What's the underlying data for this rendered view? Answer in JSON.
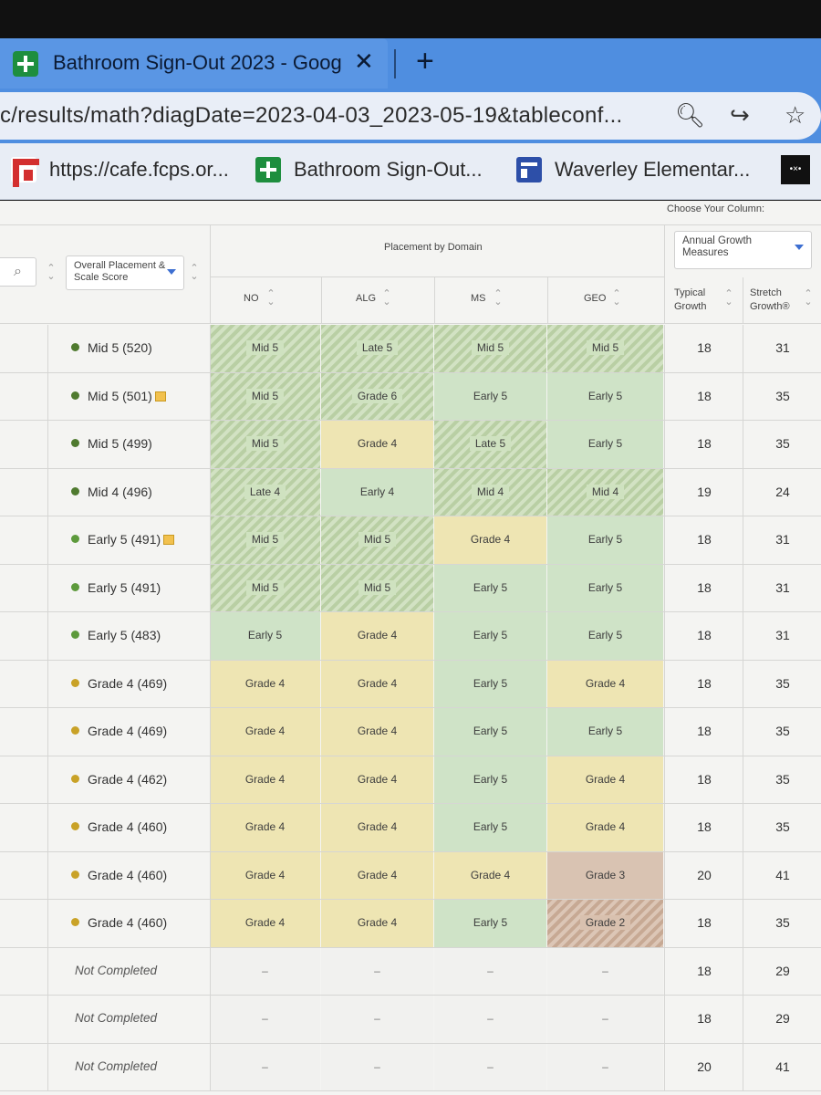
{
  "browser": {
    "tab_title": "Bathroom Sign-Out 2023 - Goog",
    "tab_close": "✕",
    "new_tab": "+",
    "url": "c/results/math?diagDate=2023-04-03_2023-05-19&tableconf...",
    "bookmarks": [
      {
        "label": "https://cafe.fcps.or...",
        "icon": "cafe-icon"
      },
      {
        "label": "Bathroom Sign-Out...",
        "icon": "sheets-icon"
      },
      {
        "label": "Waverley Elementar...",
        "icon": "school-icon"
      }
    ],
    "misc_icon_text": "•×•"
  },
  "table": {
    "choose_column_label": "Choose Your Column:",
    "growth_dropdown": "Annual Growth Measures",
    "overall_dropdown": "Overall Placement & Scale Score",
    "domain_header": "Placement by Domain",
    "domain_columns": [
      "NO",
      "ALG",
      "MS",
      "GEO"
    ],
    "typical_growth": "Typical Growth",
    "stretch_growth": "Stretch Growth®",
    "empty_mark": "–",
    "rows": [
      {
        "label": "Mid 5 (520)",
        "dot": "dark",
        "flag": false,
        "cells": [
          "Mid 5",
          "Late 5",
          "Mid 5",
          "Mid 5"
        ],
        "styles": [
          "gh",
          "gh",
          "gh",
          "gh"
        ],
        "typical": "18",
        "stretch": "31"
      },
      {
        "label": "Mid 5 (501)",
        "dot": "dark",
        "flag": true,
        "cells": [
          "Mid 5",
          "Grade 6",
          "Early 5",
          "Early 5"
        ],
        "styles": [
          "gh",
          "gh",
          "g",
          "g"
        ],
        "typical": "18",
        "stretch": "35"
      },
      {
        "label": "Mid 5 (499)",
        "dot": "dark",
        "flag": false,
        "cells": [
          "Mid 5",
          "Grade 4",
          "Late 5",
          "Early 5"
        ],
        "styles": [
          "gh",
          "y",
          "gh",
          "g"
        ],
        "typical": "18",
        "stretch": "35"
      },
      {
        "label": "Mid 4 (496)",
        "dot": "dark",
        "flag": false,
        "cells": [
          "Late 4",
          "Early 4",
          "Mid 4",
          "Mid 4"
        ],
        "styles": [
          "gh",
          "g",
          "gh",
          "gh"
        ],
        "typical": "19",
        "stretch": "24"
      },
      {
        "label": "Early 5 (491)",
        "dot": "green",
        "flag": true,
        "cells": [
          "Mid 5",
          "Mid 5",
          "Grade 4",
          "Early 5"
        ],
        "styles": [
          "gh",
          "gh",
          "y",
          "g"
        ],
        "typical": "18",
        "stretch": "31"
      },
      {
        "label": "Early 5 (491)",
        "dot": "green",
        "flag": false,
        "cells": [
          "Mid 5",
          "Mid 5",
          "Early 5",
          "Early 5"
        ],
        "styles": [
          "gh",
          "gh",
          "g",
          "g"
        ],
        "typical": "18",
        "stretch": "31"
      },
      {
        "label": "Early 5 (483)",
        "dot": "green",
        "flag": false,
        "cells": [
          "Early 5",
          "Grade 4",
          "Early 5",
          "Early 5"
        ],
        "styles": [
          "g",
          "y",
          "g",
          "g"
        ],
        "typical": "18",
        "stretch": "31"
      },
      {
        "label": "Grade 4 (469)",
        "dot": "yellow",
        "flag": false,
        "cells": [
          "Grade 4",
          "Grade 4",
          "Early 5",
          "Grade 4"
        ],
        "styles": [
          "y",
          "y",
          "g",
          "y"
        ],
        "typical": "18",
        "stretch": "35"
      },
      {
        "label": "Grade 4 (469)",
        "dot": "yellow",
        "flag": false,
        "cells": [
          "Grade 4",
          "Grade 4",
          "Early 5",
          "Early 5"
        ],
        "styles": [
          "y",
          "y",
          "g",
          "g"
        ],
        "typical": "18",
        "stretch": "35"
      },
      {
        "label": "Grade 4 (462)",
        "dot": "yellow",
        "flag": false,
        "cells": [
          "Grade 4",
          "Grade 4",
          "Early 5",
          "Grade 4"
        ],
        "styles": [
          "y",
          "y",
          "g",
          "y"
        ],
        "typical": "18",
        "stretch": "35"
      },
      {
        "label": "Grade 4 (460)",
        "dot": "yellow",
        "flag": false,
        "cells": [
          "Grade 4",
          "Grade 4",
          "Early 5",
          "Grade 4"
        ],
        "styles": [
          "y",
          "y",
          "g",
          "y"
        ],
        "typical": "18",
        "stretch": "35"
      },
      {
        "label": "Grade 4 (460)",
        "dot": "yellow",
        "flag": false,
        "cells": [
          "Grade 4",
          "Grade 4",
          "Grade 4",
          "Grade 3"
        ],
        "styles": [
          "y",
          "y",
          "y",
          "b"
        ],
        "typical": "20",
        "stretch": "41"
      },
      {
        "label": "Grade 4 (460)",
        "dot": "yellow",
        "flag": false,
        "cells": [
          "Grade 4",
          "Grade 4",
          "Early 5",
          "Grade 2"
        ],
        "styles": [
          "y",
          "y",
          "g",
          "bh"
        ],
        "typical": "18",
        "stretch": "35"
      },
      {
        "label": "Not Completed",
        "dot": "none",
        "flag": false,
        "cells": [
          "–",
          "–",
          "–",
          "–"
        ],
        "styles": [
          "e",
          "e",
          "e",
          "e"
        ],
        "typical": "18",
        "stretch": "29"
      },
      {
        "label": "Not Completed",
        "dot": "none",
        "flag": false,
        "cells": [
          "–",
          "–",
          "–",
          "–"
        ],
        "styles": [
          "e",
          "e",
          "e",
          "e"
        ],
        "typical": "18",
        "stretch": "29"
      },
      {
        "label": "Not Completed",
        "dot": "none",
        "flag": false,
        "cells": [
          "–",
          "–",
          "–",
          "–"
        ],
        "styles": [
          "e",
          "e",
          "e",
          "e"
        ],
        "typical": "20",
        "stretch": "41"
      }
    ]
  },
  "colors": {
    "dot_dark": "#4f7a2f",
    "dot_green": "#5d9a3c",
    "dot_yellow": "#c9a227",
    "tab_bar": "#4f8ee0",
    "accent_caret": "#3d6fd1"
  }
}
